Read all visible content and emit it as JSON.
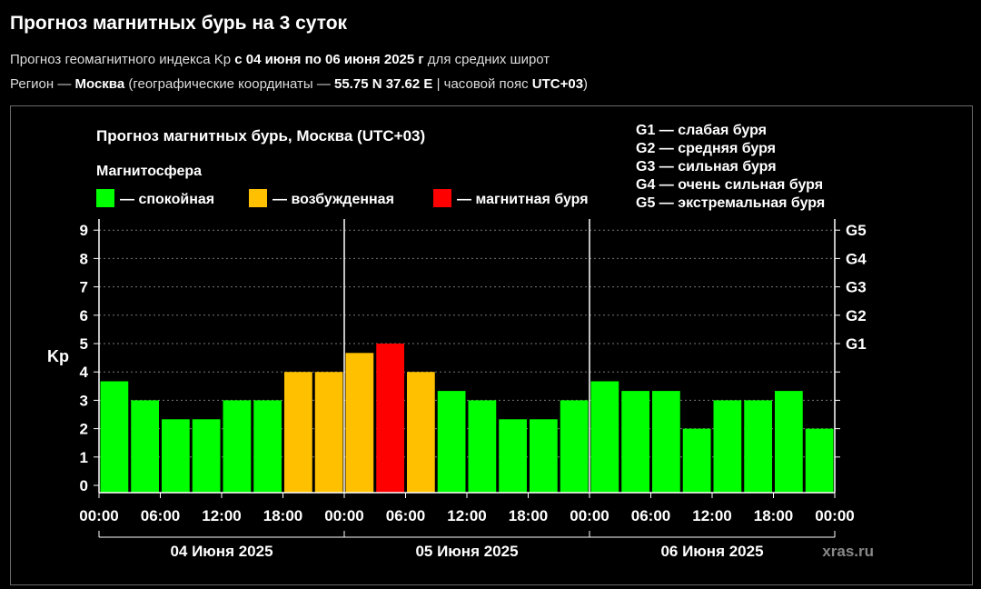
{
  "header": {
    "title": "Прогноз магнитных бурь на 3 суток",
    "subtitle": {
      "prefix": "Прогноз геомагнитного индекса Kp ",
      "period": "с 04 июня по 06 июня 2025 г",
      "suffix": " для средних широт"
    },
    "region": {
      "prefix": "Регион — ",
      "city": "Москва",
      "middle": " (географические координаты — ",
      "coords": "55.75 N 37.62 E",
      "tz_prefix": " | часовой пояс ",
      "tz": "UTC+03",
      "suffix": ")"
    }
  },
  "chart_data": {
    "type": "bar",
    "title": "Прогноз магнитных бурь, Москва (UTC+03)",
    "legend_title": "Магнитосфера",
    "legend": [
      {
        "label": "— спокойная",
        "color": "#00ff00"
      },
      {
        "label": "— возбужденная",
        "color": "#ffc000"
      },
      {
        "label": "— магнитная буря",
        "color": "#ff0000"
      }
    ],
    "storm_scale": [
      "G1 — слабая буря",
      "G2 — средняя буря",
      "G3 — сильная буря",
      "G4 — очень сильная буря",
      "G5 — экстремальная буря"
    ],
    "ylabel": "Kp",
    "ylim": [
      0,
      9
    ],
    "yticks": [
      "0",
      "1",
      "2",
      "3",
      "4",
      "5",
      "6",
      "7",
      "8",
      "9"
    ],
    "right_axis_labels": [
      {
        "label": "G1",
        "kp": 5
      },
      {
        "label": "G2",
        "kp": 6
      },
      {
        "label": "G3",
        "kp": 7
      },
      {
        "label": "G4",
        "kp": 8
      },
      {
        "label": "G5",
        "kp": 9
      }
    ],
    "xtick_labels": [
      "00:00",
      "06:00",
      "12:00",
      "18:00",
      "00:00",
      "06:00",
      "12:00",
      "18:00",
      "00:00",
      "06:00",
      "12:00",
      "18:00",
      "00:00"
    ],
    "days": [
      "04 Июня 2025",
      "05 Июня 2025",
      "06 Июня 2025"
    ],
    "interval_hours": 3,
    "values": [
      3.67,
      3.0,
      2.33,
      2.33,
      3.0,
      3.0,
      4.0,
      4.0,
      4.67,
      5.0,
      4.0,
      3.33,
      3.0,
      2.33,
      2.33,
      3.0,
      3.67,
      3.33,
      3.33,
      2.0,
      3.0,
      3.0,
      3.33,
      2.0
    ],
    "bar_colors": [
      "#00ff00",
      "#00ff00",
      "#00ff00",
      "#00ff00",
      "#00ff00",
      "#00ff00",
      "#ffc000",
      "#ffc000",
      "#ffc000",
      "#ff0000",
      "#ffc000",
      "#00ff00",
      "#00ff00",
      "#00ff00",
      "#00ff00",
      "#00ff00",
      "#00ff00",
      "#00ff00",
      "#00ff00",
      "#00ff00",
      "#00ff00",
      "#00ff00",
      "#00ff00",
      "#00ff00"
    ],
    "grid": "horizontal dotted",
    "watermark": "xras.ru"
  }
}
